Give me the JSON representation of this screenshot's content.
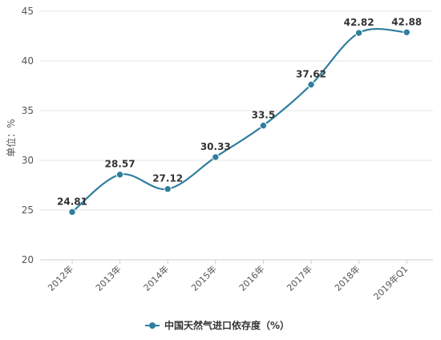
{
  "chart_data": {
    "type": "line",
    "title": "",
    "xlabel": "",
    "ylabel": "单位：%",
    "categories": [
      "2012年",
      "2013年",
      "2014年",
      "2015年",
      "2016年",
      "2017年",
      "2018年",
      "2019年Q1"
    ],
    "series": [
      {
        "name": "中国天然气进口依存度（%）",
        "values": [
          24.81,
          28.57,
          27.12,
          30.33,
          33.5,
          37.62,
          42.82,
          42.88
        ],
        "labels": [
          "24.81",
          "28.57",
          "27.12",
          "30.33",
          "33.5",
          "37.62",
          "42.82",
          "42.88"
        ],
        "color": "#2f7f9f"
      }
    ],
    "ylim": [
      20,
      45
    ],
    "yticks": [
      20,
      25,
      30,
      35,
      40,
      45
    ],
    "grid": true,
    "legend_position": "bottom-center",
    "line_style": "smooth"
  }
}
